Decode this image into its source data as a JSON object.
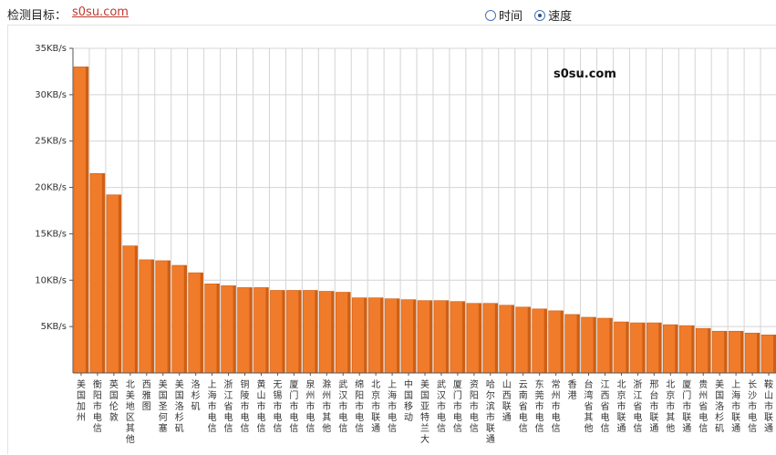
{
  "header": {
    "target_label": "检测目标：",
    "target_link": "s0su.com",
    "radio_time": "时间",
    "radio_speed": "速度",
    "selected": "speed"
  },
  "colors": {
    "bar_fill": "#f07b2a",
    "bar_dark": "#cf5f14",
    "grid": "#d4d4d4",
    "axis": "#555555"
  },
  "chart_data": {
    "type": "bar",
    "title": "",
    "watermark": "s0su.com",
    "xlabel": "",
    "ylabel": "",
    "ylim": [
      0,
      35
    ],
    "yticks": [
      5,
      10,
      15,
      20,
      25,
      30,
      35
    ],
    "ytick_labels": [
      "5KB/s",
      "10KB/s",
      "15KB/s",
      "20KB/s",
      "25KB/s",
      "30KB/s",
      "35KB/s"
    ],
    "grid": true,
    "categories": [
      "美国加州",
      "衡阳市电信",
      "英国伦敦",
      "北美地区其他",
      "西雅图",
      "美国圣何塞",
      "美国洛杉矶",
      "洛杉矶",
      "上海市电信",
      "浙江省电信",
      "铜陵市电信",
      "黄山市电信",
      "无锡市电信",
      "厦门市电信",
      "泉州市电信",
      "滁州市其他",
      "武汉市电信",
      "绵阳市电信",
      "北京市联通",
      "上海市电信",
      "中国移动",
      "美国亚特兰大",
      "武汉市电信",
      "厦门市电信",
      "资阳市电信",
      "哈尔滨市联通",
      "山西联通",
      "云南省电信",
      "东莞市电信",
      "常州市电信",
      "香港",
      "台湾省其他",
      "江西省电信",
      "北京市联通",
      "浙江省电信",
      "邢台市联通",
      "北京市其他",
      "厦门市联通",
      "贵州省电信",
      "美国洛杉矶",
      "上海市联通",
      "长沙市电信",
      "鞍山市联通"
    ],
    "values": [
      33.0,
      21.5,
      19.2,
      13.7,
      12.2,
      12.1,
      11.6,
      10.8,
      9.6,
      9.4,
      9.2,
      9.2,
      8.9,
      8.9,
      8.9,
      8.8,
      8.7,
      8.1,
      8.1,
      8.0,
      7.9,
      7.8,
      7.8,
      7.7,
      7.5,
      7.5,
      7.3,
      7.1,
      6.9,
      6.7,
      6.3,
      6.0,
      5.9,
      5.5,
      5.4,
      5.4,
      5.2,
      5.1,
      4.8,
      4.5,
      4.5,
      4.3,
      4.1
    ]
  }
}
